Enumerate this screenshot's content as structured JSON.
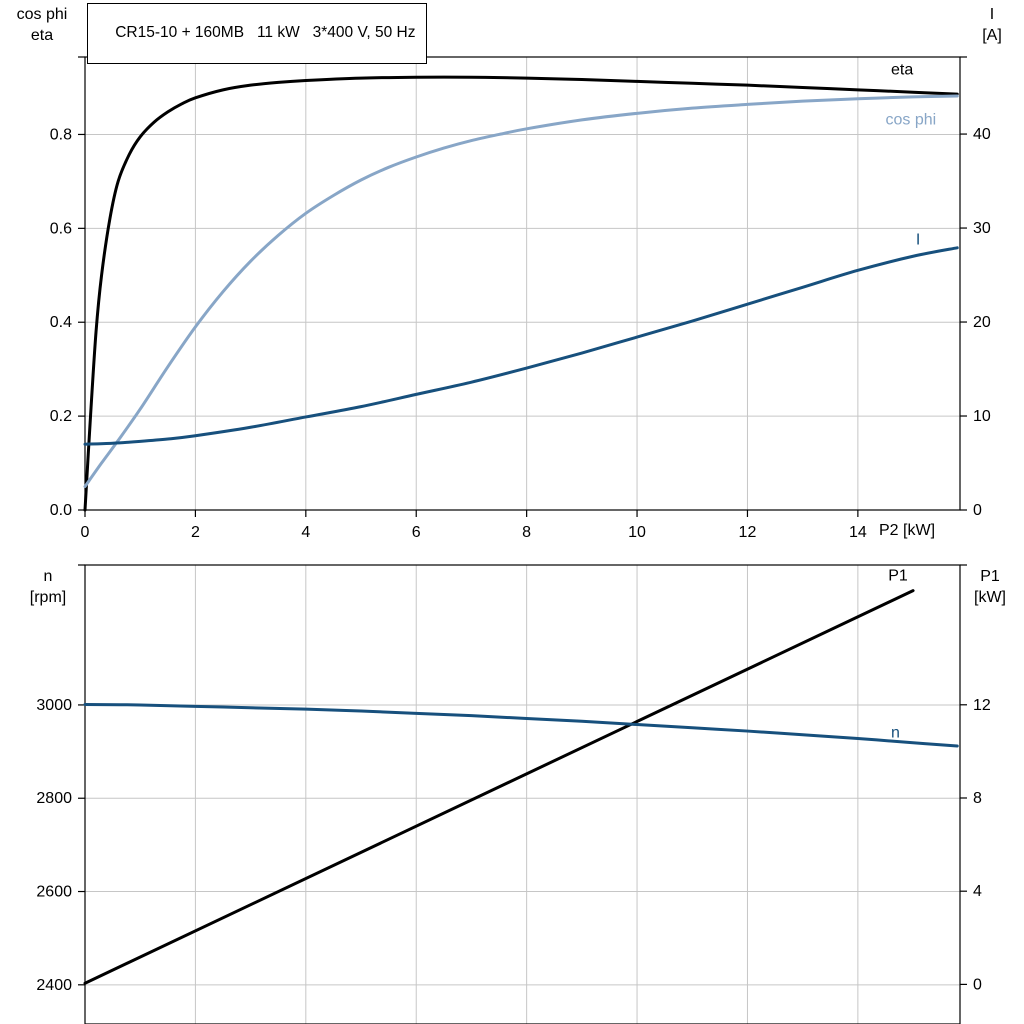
{
  "title_box": {
    "text": "CR15-10 + 160MB   11 kW   3*400 V, 50 Hz"
  },
  "chart_data": [
    {
      "type": "line",
      "title": "CR15-10 + 160MB   11 kW   3*400 V, 50 Hz",
      "grid": true,
      "legend_position": "inline-labels",
      "x_axis": {
        "label": "P2 [kW]",
        "range": [
          0,
          15.85
        ],
        "tick_values": [
          0,
          2,
          4,
          6,
          8,
          10,
          12,
          14
        ],
        "tick_labels": [
          "0",
          "2",
          "4",
          "6",
          "8",
          "10",
          "12",
          "14"
        ]
      },
      "left_axis": {
        "title_lines": [
          "cos phi",
          "eta"
        ],
        "range": [
          0,
          0.965
        ],
        "tick_values": [
          0,
          0.2,
          0.4,
          0.6,
          0.8
        ],
        "tick_labels": [
          "0.0",
          "0.2",
          "0.4",
          "0.6",
          "0.8"
        ]
      },
      "right_axis": {
        "title_lines": [
          "I",
          "[A]"
        ],
        "range": [
          0,
          48.2
        ],
        "tick_values": [
          0,
          10,
          20,
          30,
          40
        ],
        "tick_labels": [
          "0",
          "10",
          "20",
          "30",
          "40"
        ]
      },
      "series": [
        {
          "name": "eta",
          "color": "#000000",
          "axis": "left",
          "width": 3,
          "label": {
            "x": 14.6,
            "y": 0.938
          },
          "points": [
            [
              0,
              0
            ],
            [
              0.1,
              0.2
            ],
            [
              0.2,
              0.38
            ],
            [
              0.3,
              0.5
            ],
            [
              0.45,
              0.62
            ],
            [
              0.6,
              0.7
            ],
            [
              0.8,
              0.757
            ],
            [
              1,
              0.795
            ],
            [
              1.25,
              0.826
            ],
            [
              1.5,
              0.848
            ],
            [
              1.75,
              0.865
            ],
            [
              2,
              0.878
            ],
            [
              2.5,
              0.895
            ],
            [
              3,
              0.905
            ],
            [
              3.5,
              0.911
            ],
            [
              4,
              0.915
            ],
            [
              5,
              0.92
            ],
            [
              6,
              0.922
            ],
            [
              7,
              0.922
            ],
            [
              8,
              0.92
            ],
            [
              9,
              0.917
            ],
            [
              10,
              0.913
            ],
            [
              11,
              0.909
            ],
            [
              12,
              0.905
            ],
            [
              13,
              0.9
            ],
            [
              14,
              0.895
            ],
            [
              15,
              0.89
            ],
            [
              15.8,
              0.886
            ]
          ]
        },
        {
          "name": "cos phi",
          "color": "#88a6c7",
          "axis": "left",
          "width": 3,
          "label": {
            "x": 14.5,
            "y": 0.832
          },
          "points": [
            [
              0,
              0.05
            ],
            [
              0.3,
              0.1
            ],
            [
              0.6,
              0.148
            ],
            [
              1,
              0.215
            ],
            [
              1.5,
              0.305
            ],
            [
              2,
              0.39
            ],
            [
              2.5,
              0.465
            ],
            [
              3,
              0.53
            ],
            [
              3.5,
              0.585
            ],
            [
              4,
              0.632
            ],
            [
              4.5,
              0.67
            ],
            [
              5,
              0.703
            ],
            [
              5.5,
              0.73
            ],
            [
              6,
              0.752
            ],
            [
              6.5,
              0.771
            ],
            [
              7,
              0.787
            ],
            [
              7.5,
              0.8
            ],
            [
              8,
              0.812
            ],
            [
              9,
              0.831
            ],
            [
              10,
              0.845
            ],
            [
              11,
              0.856
            ],
            [
              12,
              0.864
            ],
            [
              13,
              0.871
            ],
            [
              14,
              0.876
            ],
            [
              15,
              0.88
            ],
            [
              15.8,
              0.882
            ]
          ]
        },
        {
          "name": "I",
          "color": "#17507d",
          "axis": "right",
          "width": 3,
          "label": {
            "x": 15.05,
            "y": 28.8
          },
          "points": [
            [
              0,
              7
            ],
            [
              0.5,
              7.1
            ],
            [
              1,
              7.3
            ],
            [
              1.5,
              7.55
            ],
            [
              2,
              7.9
            ],
            [
              3,
              8.8
            ],
            [
              4,
              9.9
            ],
            [
              5,
              11
            ],
            [
              6,
              12.3
            ],
            [
              7,
              13.6
            ],
            [
              8,
              15.1
            ],
            [
              9,
              16.7
            ],
            [
              10,
              18.4
            ],
            [
              11,
              20.1
            ],
            [
              12,
              21.9
            ],
            [
              13,
              23.7
            ],
            [
              14,
              25.5
            ],
            [
              15,
              27
            ],
            [
              15.8,
              27.9
            ]
          ]
        }
      ]
    },
    {
      "type": "line",
      "title": "",
      "grid": true,
      "x_axis": {
        "label": "",
        "range": [
          0,
          15.85
        ],
        "tick_values": [
          2,
          4,
          6,
          8,
          10,
          12,
          14
        ],
        "tick_labels": []
      },
      "left_axis": {
        "title_lines": [
          "n",
          "[rpm]"
        ],
        "range": [
          2316,
          3300
        ],
        "tick_values": [
          2400,
          2600,
          2800,
          3000
        ],
        "tick_labels": [
          "2400",
          "2600",
          "2800",
          "3000"
        ]
      },
      "right_axis": {
        "title_lines": [
          "P1",
          "[kW]"
        ],
        "range": [
          -1.7,
          18.0
        ],
        "tick_values": [
          0,
          4,
          8,
          12
        ],
        "tick_labels": [
          "0",
          "4",
          "8",
          "12"
        ]
      },
      "series": [
        {
          "name": "P1",
          "color": "#000000",
          "axis": "right",
          "width": 3,
          "label": {
            "x": 14.55,
            "y": 17.55
          },
          "points": [
            [
              0,
              0.05
            ],
            [
              15.0,
              16.9
            ]
          ]
        },
        {
          "name": "n",
          "color": "#17507d",
          "axis": "left",
          "width": 3,
          "label": {
            "x": 14.6,
            "y": 2941
          },
          "points": [
            [
              0,
              3001
            ],
            [
              1,
              3000
            ],
            [
              2,
              2997
            ],
            [
              3,
              2994
            ],
            [
              4,
              2991
            ],
            [
              5,
              2987
            ],
            [
              6,
              2982
            ],
            [
              7,
              2977
            ],
            [
              8,
              2971
            ],
            [
              9,
              2965
            ],
            [
              10,
              2958
            ],
            [
              11,
              2951
            ],
            [
              12,
              2944
            ],
            [
              13,
              2936
            ],
            [
              14,
              2928
            ],
            [
              15,
              2919
            ],
            [
              15.8,
              2912
            ]
          ]
        }
      ]
    }
  ],
  "colors": {
    "grid": "#c6c6c6",
    "frame": "#000000",
    "dark_blue": "#17507d",
    "light_blue": "#88a6c7",
    "black": "#000000"
  }
}
